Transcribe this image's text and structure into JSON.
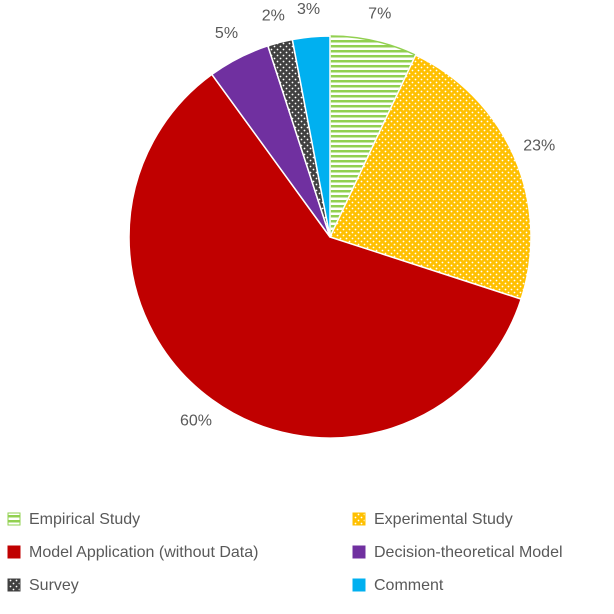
{
  "chart_data": {
    "type": "pie",
    "categories": [
      "Empirical Study",
      "Experimental Study",
      "Model Application (without Data)",
      "Decision-theoretical Model",
      "Survey",
      "Comment"
    ],
    "values": [
      7,
      23,
      60,
      5,
      2,
      3
    ],
    "value_labels": [
      "7%",
      "23%",
      "60%",
      "5%",
      "2%",
      "3%"
    ],
    "colors": [
      "#92d050",
      "#ffc000",
      "#c00000",
      "#7030a0",
      "#404040",
      "#00b0f0"
    ],
    "patterns": [
      "stripes",
      "dots",
      "solid",
      "solid",
      "dots",
      "solid"
    ]
  }
}
